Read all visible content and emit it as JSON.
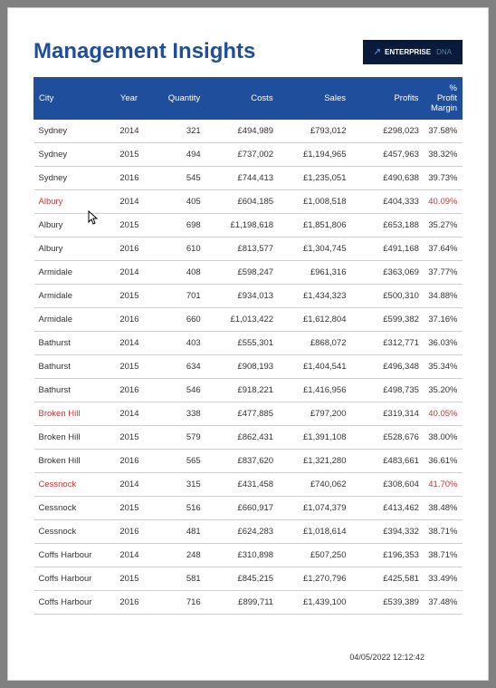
{
  "title": "Management Insights",
  "logo": {
    "text": "ENTERPRISE",
    "secondary": "DNA"
  },
  "columns": [
    "City",
    "Year",
    "Quantity",
    "Costs",
    "Sales",
    "Profits",
    "% Profit Margin"
  ],
  "rows": [
    {
      "city": "Sydney",
      "year": "2014",
      "qty": "321",
      "costs": "£494,989",
      "sales": "£793,012",
      "profits": "£298,023",
      "margin": "37.58%",
      "highlight": false
    },
    {
      "city": "Sydney",
      "year": "2015",
      "qty": "494",
      "costs": "£737,002",
      "sales": "£1,194,965",
      "profits": "£457,963",
      "margin": "38.32%",
      "highlight": false
    },
    {
      "city": "Sydney",
      "year": "2016",
      "qty": "545",
      "costs": "£744,413",
      "sales": "£1,235,051",
      "profits": "£490,638",
      "margin": "39.73%",
      "highlight": false
    },
    {
      "city": "Albury",
      "year": "2014",
      "qty": "405",
      "costs": "£604,185",
      "sales": "£1,008,518",
      "profits": "£404,333",
      "margin": "40.09%",
      "highlight": true
    },
    {
      "city": "Albury",
      "year": "2015",
      "qty": "698",
      "costs": "£1,198,618",
      "sales": "£1,851,806",
      "profits": "£653,188",
      "margin": "35.27%",
      "highlight": false
    },
    {
      "city": "Albury",
      "year": "2016",
      "qty": "610",
      "costs": "£813,577",
      "sales": "£1,304,745",
      "profits": "£491,168",
      "margin": "37.64%",
      "highlight": false
    },
    {
      "city": "Armidale",
      "year": "2014",
      "qty": "408",
      "costs": "£598,247",
      "sales": "£961,316",
      "profits": "£363,069",
      "margin": "37.77%",
      "highlight": false
    },
    {
      "city": "Armidale",
      "year": "2015",
      "qty": "701",
      "costs": "£934,013",
      "sales": "£1,434,323",
      "profits": "£500,310",
      "margin": "34.88%",
      "highlight": false
    },
    {
      "city": "Armidale",
      "year": "2016",
      "qty": "660",
      "costs": "£1,013,422",
      "sales": "£1,612,804",
      "profits": "£599,382",
      "margin": "37.16%",
      "highlight": false
    },
    {
      "city": "Bathurst",
      "year": "2014",
      "qty": "403",
      "costs": "£555,301",
      "sales": "£868,072",
      "profits": "£312,771",
      "margin": "36.03%",
      "highlight": false
    },
    {
      "city": "Bathurst",
      "year": "2015",
      "qty": "634",
      "costs": "£908,193",
      "sales": "£1,404,541",
      "profits": "£496,348",
      "margin": "35.34%",
      "highlight": false
    },
    {
      "city": "Bathurst",
      "year": "2016",
      "qty": "546",
      "costs": "£918,221",
      "sales": "£1,416,956",
      "profits": "£498,735",
      "margin": "35.20%",
      "highlight": false
    },
    {
      "city": "Broken Hill",
      "year": "2014",
      "qty": "338",
      "costs": "£477,885",
      "sales": "£797,200",
      "profits": "£319,314",
      "margin": "40.05%",
      "highlight": true
    },
    {
      "city": "Broken Hill",
      "year": "2015",
      "qty": "579",
      "costs": "£862,431",
      "sales": "£1,391,108",
      "profits": "£528,676",
      "margin": "38.00%",
      "highlight": false
    },
    {
      "city": "Broken Hill",
      "year": "2016",
      "qty": "565",
      "costs": "£837,620",
      "sales": "£1,321,280",
      "profits": "£483,661",
      "margin": "36.61%",
      "highlight": false
    },
    {
      "city": "Cessnock",
      "year": "2014",
      "qty": "315",
      "costs": "£431,458",
      "sales": "£740,062",
      "profits": "£308,604",
      "margin": "41.70%",
      "highlight": true
    },
    {
      "city": "Cessnock",
      "year": "2015",
      "qty": "516",
      "costs": "£660,917",
      "sales": "£1,074,379",
      "profits": "£413,462",
      "margin": "38.48%",
      "highlight": false
    },
    {
      "city": "Cessnock",
      "year": "2016",
      "qty": "481",
      "costs": "£624,283",
      "sales": "£1,018,614",
      "profits": "£394,332",
      "margin": "38.71%",
      "highlight": false
    },
    {
      "city": "Coffs Harbour",
      "year": "2014",
      "qty": "248",
      "costs": "£310,898",
      "sales": "£507,250",
      "profits": "£196,353",
      "margin": "38.71%",
      "highlight": false
    },
    {
      "city": "Coffs Harbour",
      "year": "2015",
      "qty": "581",
      "costs": "£845,215",
      "sales": "£1,270,796",
      "profits": "£425,581",
      "margin": "33.49%",
      "highlight": false
    },
    {
      "city": "Coffs Harbour",
      "year": "2016",
      "qty": "716",
      "costs": "£899,711",
      "sales": "£1,439,100",
      "profits": "£539,389",
      "margin": "37.48%",
      "highlight": false
    }
  ],
  "timestamp": "04/05/2022 12:12:42"
}
